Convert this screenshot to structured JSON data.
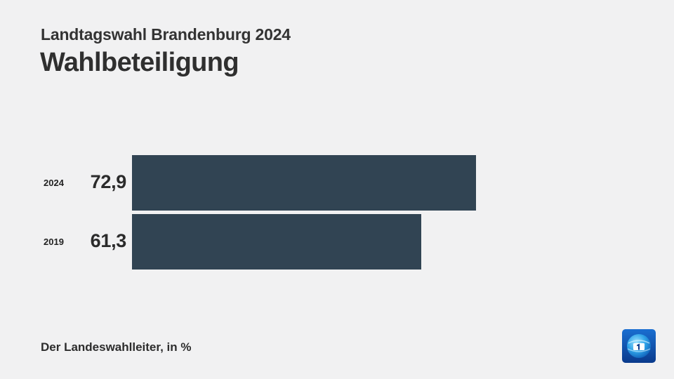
{
  "header": {
    "subtitle": "Landtagswahl Brandenburg 2024",
    "title": "Wahlbeteiligung"
  },
  "footer": {
    "source": "Der Landeswahlleiter, in %"
  },
  "logo": {
    "icon": "tagesschau-1-logo-icon"
  },
  "chart_data": {
    "type": "bar",
    "orientation": "horizontal",
    "categories": [
      "2024",
      "2019"
    ],
    "values": [
      72.9,
      61.3
    ],
    "value_labels": [
      "72,9",
      "61,3"
    ],
    "xlim": [
      0,
      100
    ],
    "grid": false,
    "bar_color": "#314453"
  }
}
